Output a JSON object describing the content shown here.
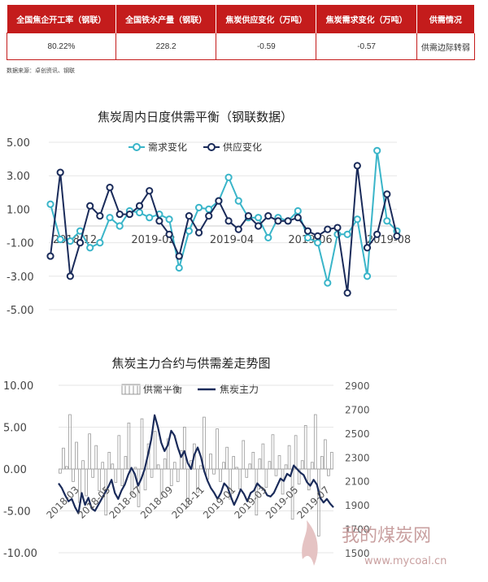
{
  "summary": {
    "headers": [
      "全国焦企开工率（钢联）",
      "全国铁水产量（钢联）",
      "焦炭供应变化（万吨）",
      "焦炭需求变化（万吨）",
      "供需情况"
    ],
    "values": [
      "80.22%",
      "228.2",
      "-0.59",
      "-0.57",
      "供需边际转弱"
    ]
  },
  "source_note": "数据来源：卓创资讯、钢联",
  "watermark": {
    "text": "我的煤炭网",
    "url": "www.mycoal.cn"
  },
  "colors": {
    "accent": "#c41c1c",
    "demand": "#3ab5c9",
    "supply": "#1a2b5a",
    "balance_bar": "#999999"
  },
  "chart_data": [
    {
      "type": "line",
      "title": "焦炭周内日度供需平衡（钢联数据）",
      "ylim": [
        -5,
        5
      ],
      "y_ticks": [
        "5.00",
        "3.00",
        "1.00",
        "-1.00",
        "-3.00",
        "-5.00"
      ],
      "x_tick_labels": [
        "2018-12",
        "2019-02",
        "2019-04",
        "2019-06",
        "2019-08"
      ],
      "series": [
        {
          "name": "需求变化",
          "values": [
            1.3,
            -0.8,
            -0.9,
            -0.3,
            -1.3,
            -1.0,
            0.5,
            0.0,
            0.9,
            0.8,
            0.5,
            0.7,
            0.4,
            -2.5,
            -0.3,
            1.1,
            1.0,
            1.5,
            2.9,
            1.5,
            0.5,
            0.5,
            -0.7,
            0.5,
            0.3,
            0.9,
            -0.7,
            -1.0,
            -3.4,
            -0.5,
            -0.5,
            0.4,
            -3.0,
            4.5,
            0.3,
            -0.3
          ]
        },
        {
          "name": "供应变化",
          "values": [
            -1.8,
            3.2,
            -3.0,
            -1.0,
            1.2,
            0.6,
            2.3,
            0.7,
            0.7,
            1.2,
            2.1,
            0.3,
            -0.5,
            -1.8,
            0.6,
            -0.4,
            0.6,
            1.5,
            0.3,
            -0.2,
            0.6,
            0.0,
            0.6,
            0.3,
            0.3,
            0.5,
            -0.3,
            -0.6,
            -0.2,
            -0.1,
            -4.0,
            3.6,
            -1.3,
            -0.5,
            1.9,
            -0.6
          ]
        }
      ]
    },
    {
      "type": "bar",
      "title": "焦炭主力合约与供需差走势图",
      "ylim": [
        -10,
        10
      ],
      "y_ticks": [
        "10.00",
        "5.00",
        "0.00",
        "-5.00",
        "-10.00"
      ],
      "y2lim": [
        1500,
        2900
      ],
      "y2_ticks": [
        "2900",
        "2700",
        "2500",
        "2300",
        "2100",
        "1900",
        "1700",
        "1500"
      ],
      "x_tick_labels": [
        "2018-03",
        "2018-05",
        "2018-07",
        "2018-09",
        "2018-11",
        "2019-01",
        "2019-03",
        "2019-05",
        "2019-07"
      ],
      "series": [
        {
          "name": "供需平衡",
          "values": [
            -0.5,
            2.5,
            0.3,
            6.5,
            -1.5,
            3.2,
            -4.0,
            1.0,
            -3.2,
            4.2,
            -1.0,
            2.8,
            -2.6,
            0.8,
            -5.5,
            2.0,
            0.6,
            -1.6,
            4.0,
            -2.0,
            1.5,
            5.5,
            -3.0,
            0.2,
            -4.5,
            6.0,
            -2.5,
            3.0,
            -1.0,
            4.5,
            0.5,
            -3.5,
            1.2,
            3.6,
            -2.0,
            0.8,
            -1.5,
            2.2,
            5.0,
            -4.5,
            1.0,
            3.0,
            -2.8,
            0.4,
            6.2,
            -1.2,
            1.8,
            -0.6,
            4.8,
            -1.5,
            0.8,
            2.6,
            -3.6,
            1.5,
            0.2,
            -2.4,
            3.4,
            -1.0,
            0.6,
            2.0,
            -5.5,
            1.2,
            3.0,
            -2.2,
            0.9,
            4.1,
            -0.8,
            1.6,
            -3.0,
            0.5,
            2.8,
            -6.0,
            4.0,
            -1.8,
            1.0,
            5.2,
            -2.5,
            0.8,
            6.5,
            -8.0,
            1.5,
            3.5,
            -0.8,
            2.0
          ]
        },
        {
          "name": "焦炭主力",
          "values": [
            2080,
            2040,
            1980,
            1930,
            1950,
            1880,
            1830,
            2000,
            1900,
            1960,
            1870,
            1850,
            1900,
            1950,
            2000,
            2050,
            2110,
            2000,
            1950,
            2020,
            2070,
            2150,
            2210,
            2160,
            2060,
            2120,
            2200,
            2320,
            2450,
            2650,
            2550,
            2420,
            2350,
            2400,
            2520,
            2480,
            2380,
            2300,
            2350,
            2250,
            2200,
            2320,
            2380,
            2300,
            2180,
            2100,
            2040,
            2000,
            1950,
            2000,
            2080,
            2050,
            1970,
            1900,
            1960,
            2030,
            1990,
            1930,
            2000,
            2020,
            2080,
            2050,
            2030,
            1980,
            1970,
            2000,
            2060,
            2120,
            2100,
            2160,
            2140,
            2230,
            2200,
            2170,
            2150,
            2090,
            2060,
            2110,
            2070,
            1960,
            1920,
            1950,
            1910,
            1880
          ]
        }
      ]
    }
  ]
}
